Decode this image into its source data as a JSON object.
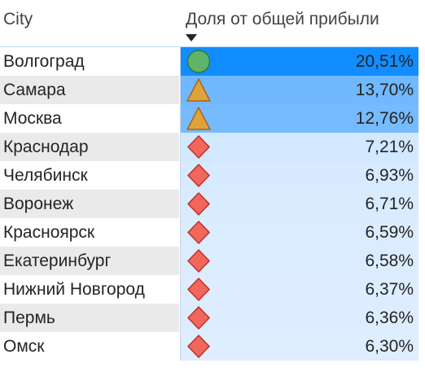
{
  "table": {
    "col_city": "City",
    "col_share": "Доля от общей прибыли",
    "sort": "descending",
    "rows": [
      {
        "city": "Волгоград",
        "share": "20,51%",
        "icon": "green-circle-icon",
        "bg": "#118dff"
      },
      {
        "city": "Самара",
        "share": "13,70%",
        "icon": "orange-triangle-icon",
        "bg": "#70b8ff"
      },
      {
        "city": "Москва",
        "share": "12,76%",
        "icon": "orange-triangle-icon",
        "bg": "#76bbff"
      },
      {
        "city": "Краснодар",
        "share": "7,21%",
        "icon": "red-diamond-icon",
        "bg": "#d2e8ff"
      },
      {
        "city": "Челябинск",
        "share": "6,93%",
        "icon": "red-diamond-icon",
        "bg": "#d7eaff"
      },
      {
        "city": "Воронеж",
        "share": "6,71%",
        "icon": "red-diamond-icon",
        "bg": "#d9ebff"
      },
      {
        "city": "Красноярск",
        "share": "6,59%",
        "icon": "red-diamond-icon",
        "bg": "#dbecff"
      },
      {
        "city": "Екатеринбург",
        "share": "6,58%",
        "icon": "red-diamond-icon",
        "bg": "#dbecff"
      },
      {
        "city": "Нижний Новгород",
        "share": "6,37%",
        "icon": "red-diamond-icon",
        "bg": "#ddedff"
      },
      {
        "city": "Пермь",
        "share": "6,36%",
        "icon": "red-diamond-icon",
        "bg": "#ddedff"
      },
      {
        "city": "Омск",
        "share": "6,30%",
        "icon": "red-diamond-icon",
        "bg": "#deeeff"
      }
    ]
  },
  "colors": {
    "circle_fill": "#5fb36a",
    "circle_stroke": "#2e7d3a",
    "triangle_fill": "#e0a23a",
    "triangle_stroke": "#a8661c",
    "diamond_fill": "#f2675c",
    "diamond_stroke": "#c0302a"
  }
}
